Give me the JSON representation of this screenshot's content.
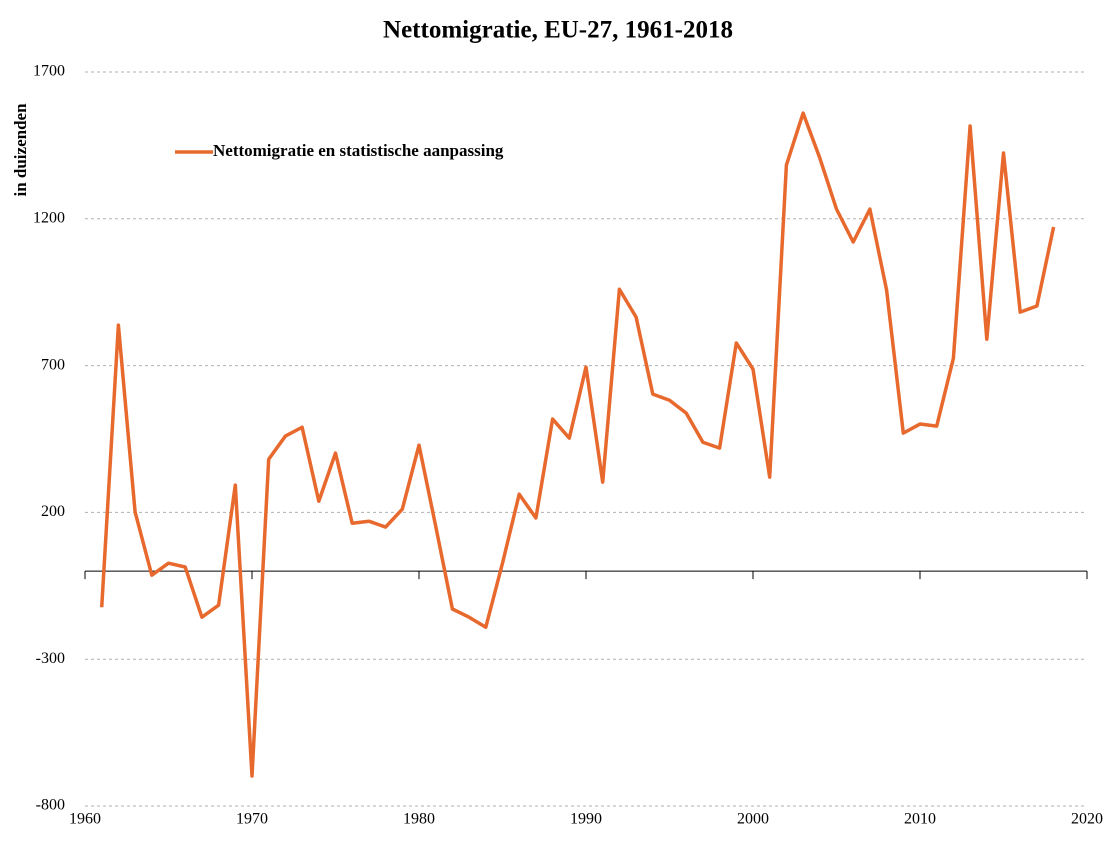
{
  "chart_data": {
    "type": "line",
    "title": "Nettomigratie, EU-27, 1961-2018",
    "y_label": "in duizenden",
    "x": [
      1961,
      1962,
      1963,
      1964,
      1965,
      1966,
      1967,
      1968,
      1969,
      1970,
      1971,
      1972,
      1973,
      1974,
      1975,
      1976,
      1977,
      1978,
      1979,
      1980,
      1981,
      1982,
      1983,
      1984,
      1985,
      1986,
      1987,
      1988,
      1989,
      1990,
      1991,
      1992,
      1993,
      1994,
      1995,
      1996,
      1997,
      1998,
      1999,
      2000,
      2001,
      2002,
      2003,
      2004,
      2005,
      2006,
      2007,
      2008,
      2009,
      2010,
      2011,
      2012,
      2013,
      2014,
      2015,
      2016,
      2017,
      2018
    ],
    "series": [
      {
        "name": "Nettomigratie en statistische aanpassing",
        "color": "#e8692d",
        "values": [
          -123,
          838,
          201,
          -14,
          27,
          14,
          -157,
          -116,
          293,
          -698,
          381,
          460,
          490,
          238,
          402,
          163,
          170,
          150,
          211,
          429,
          153,
          -129,
          -157,
          -191,
          27,
          262,
          181,
          518,
          453,
          695,
          303,
          960,
          865,
          603,
          582,
          538,
          439,
          419,
          777,
          688,
          320,
          1383,
          1560,
          1407,
          1233,
          1121,
          1233,
          957,
          470,
          501,
          494,
          725,
          1516,
          790,
          1424,
          882,
          903,
          1172
        ]
      }
    ],
    "xlim": [
      1960,
      2020
    ],
    "xticks": [
      1960,
      1970,
      1980,
      1990,
      2000,
      2010,
      2020
    ],
    "ylim": [
      -800,
      1700
    ],
    "yticks": [
      -800,
      -300,
      200,
      700,
      1200,
      1700
    ],
    "grid": true,
    "legend": "upper left"
  }
}
